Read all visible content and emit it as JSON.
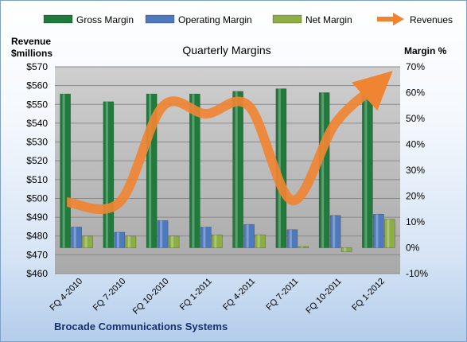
{
  "chart_data": {
    "type": "bar",
    "title": "Quarterly Margins",
    "footer": "Brocade Communications Systems",
    "y_left_label": [
      "Revenue",
      "$millions"
    ],
    "y_right_label": "Margin %",
    "categories": [
      "FQ 4-2010",
      "FQ 7-2010",
      "FQ 10-2010",
      "FQ 1-2011",
      "FQ 4-2011",
      "FQ 7-2011",
      "FQ 10-2011",
      "FQ 1-2012"
    ],
    "y_left_ticks": [
      "$460",
      "$470",
      "$480",
      "$490",
      "$500",
      "$510",
      "$520",
      "$530",
      "$540",
      "$550",
      "$560",
      "$570"
    ],
    "y_right_ticks": [
      "-10%",
      "0%",
      "10%",
      "20%",
      "30%",
      "40%",
      "50%",
      "60%",
      "70%"
    ],
    "ylim_left": [
      460,
      570
    ],
    "ylim_right": [
      -10,
      70
    ],
    "grid": true,
    "legend_position": "top",
    "series": [
      {
        "name": "Gross Margin",
        "axis": "right",
        "kind": "bar",
        "color": "#1f7a3c",
        "values": [
          59.5,
          56.5,
          59.5,
          59.5,
          60.5,
          61.5,
          60.0,
          61.0
        ]
      },
      {
        "name": "Operating Margin",
        "axis": "right",
        "kind": "bar",
        "color": "#4f79bd",
        "values": [
          8.0,
          6.0,
          10.5,
          8.0,
          9.0,
          7.0,
          12.5,
          13.0
        ]
      },
      {
        "name": "Net Margin",
        "axis": "right",
        "kind": "bar",
        "color": "#8cae45",
        "values": [
          4.5,
          4.5,
          4.5,
          5.0,
          5.0,
          0.5,
          -1.5,
          11.0
        ]
      },
      {
        "name": "Revenues",
        "axis": "left",
        "kind": "line",
        "color": "#ef8433",
        "values": [
          498,
          498,
          549,
          545,
          549,
          499,
          540,
          561
        ]
      }
    ]
  }
}
